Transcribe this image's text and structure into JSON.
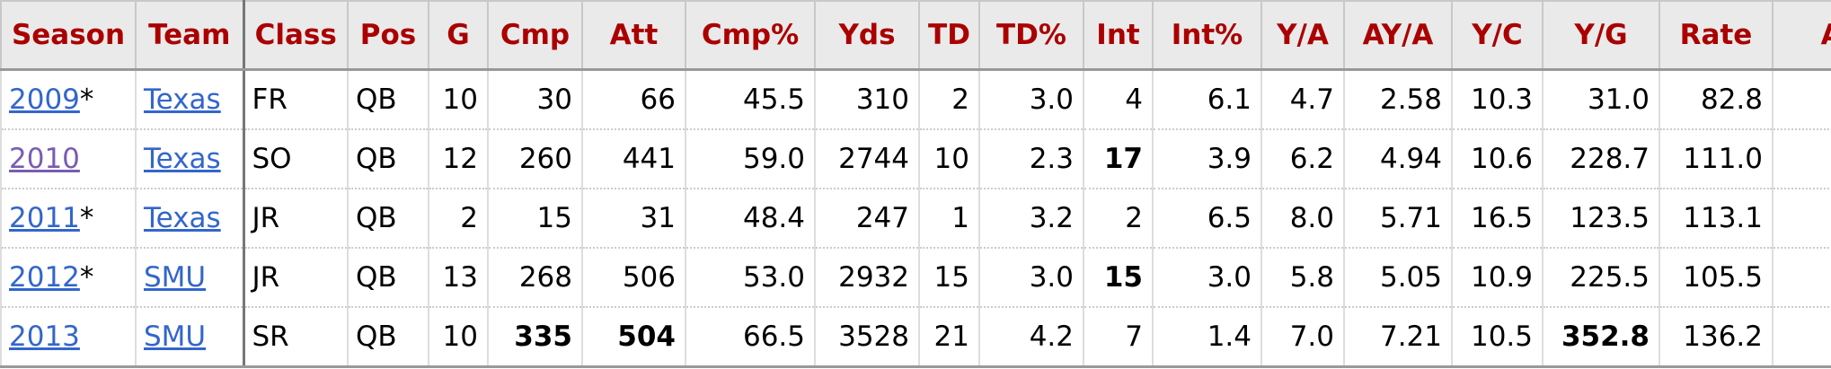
{
  "table": {
    "headers": [
      "Season",
      "Team",
      "Class",
      "Pos",
      "G",
      "Cmp",
      "Att",
      "Cmp%",
      "Yds",
      "TD",
      "TD%",
      "Int",
      "Int%",
      "Y/A",
      "AY/A",
      "Y/C",
      "Y/G",
      "Rate",
      "Aw"
    ],
    "rows": [
      {
        "season": "2009",
        "season_note": "*",
        "season_visited": false,
        "team": "Texas",
        "cells": [
          "FR",
          "QB",
          "10",
          "30",
          "66",
          "45.5",
          "310",
          "2",
          "3.0",
          "4",
          "6.1",
          "4.7",
          "2.58",
          "10.3",
          "31.0",
          "82.8"
        ],
        "bold": []
      },
      {
        "season": "2010",
        "season_visited": true,
        "team": "Texas",
        "cells": [
          "SO",
          "QB",
          "12",
          "260",
          "441",
          "59.0",
          "2744",
          "10",
          "2.3",
          "17",
          "3.9",
          "6.2",
          "4.94",
          "10.6",
          "228.7",
          "111.0"
        ],
        "bold": [
          9
        ]
      },
      {
        "season": "2011",
        "season_note": "*",
        "season_visited": false,
        "team": "Texas",
        "cells": [
          "JR",
          "QB",
          "2",
          "15",
          "31",
          "48.4",
          "247",
          "1",
          "3.2",
          "2",
          "6.5",
          "8.0",
          "5.71",
          "16.5",
          "123.5",
          "113.1"
        ],
        "bold": []
      },
      {
        "season": "2012",
        "season_note": "*",
        "season_visited": false,
        "team": "SMU",
        "cells": [
          "JR",
          "QB",
          "13",
          "268",
          "506",
          "53.0",
          "2932",
          "15",
          "3.0",
          "15",
          "3.0",
          "5.8",
          "5.05",
          "10.9",
          "225.5",
          "105.5"
        ],
        "bold": [
          9
        ]
      },
      {
        "season": "2013",
        "season_visited": false,
        "team": "SMU",
        "cells": [
          "SR",
          "QB",
          "10",
          "335",
          "504",
          "66.5",
          "3528",
          "21",
          "4.2",
          "7",
          "1.4",
          "7.0",
          "7.21",
          "10.5",
          "352.8",
          "136.2"
        ],
        "bold": [
          3,
          4,
          14
        ]
      }
    ]
  }
}
